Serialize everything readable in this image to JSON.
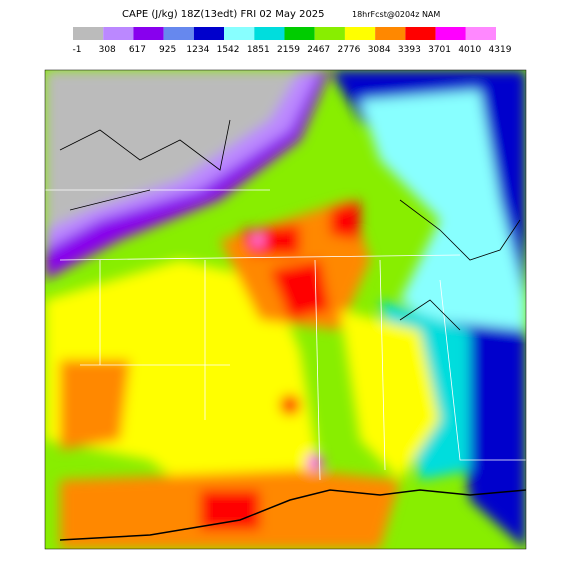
{
  "header": {
    "title": "CAPE (J/kg) 18Z(13edt) FRI 02 May 2025",
    "subtitle": "18hrFcst@0204z NAM"
  },
  "colorbar": {
    "labels": [
      "-1",
      "308",
      "617",
      "925",
      "1234",
      "1542",
      "1851",
      "2159",
      "2467",
      "2776",
      "3084",
      "3393",
      "3701",
      "4010",
      "4319"
    ],
    "colors": [
      "#bbbbbb",
      "#bb88ff",
      "#8800ee",
      "#6688ee",
      "#0000cc",
      "#88ffff",
      "#00dddd",
      "#00cc00",
      "#88ee00",
      "#ffff00",
      "#ff8800",
      "#ff0000",
      "#ff00ff",
      "#ff88ff"
    ]
  }
}
